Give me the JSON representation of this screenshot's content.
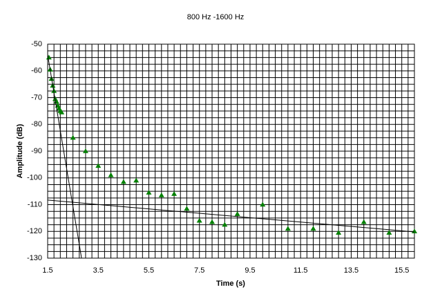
{
  "chart_data": {
    "type": "scatter",
    "title": "800 Hz -1600 Hz",
    "x_label": "Time (s)",
    "y_label": "Amplitude (dB)",
    "xlim": [
      1.5,
      16
    ],
    "ylim": [
      -130,
      -50
    ],
    "xticks": [
      1.5,
      3.5,
      5.5,
      7.5,
      9.5,
      11.5,
      13.5,
      15.5
    ],
    "yticks": [
      -50,
      -60,
      -70,
      -80,
      -90,
      -100,
      -110,
      -120,
      -130
    ],
    "grid": true,
    "series": [
      {
        "color": "#008000",
        "marker": "triangle",
        "x": [
          1.55,
          1.6,
          1.65,
          1.7,
          1.75,
          1.8,
          1.85,
          1.9,
          1.95,
          2.0,
          2.05,
          2.5,
          3.0,
          3.5,
          4.0,
          4.5,
          5.0,
          5.5,
          6.0,
          6.5,
          7.0,
          7.5,
          8.0,
          8.5,
          9.0,
          10.0,
          11.0,
          12.0,
          13.0,
          14.0,
          15.0,
          16.0
        ],
        "values": [
          -55,
          -59.5,
          -63,
          -65.5,
          -67.5,
          -70.5,
          -71.5,
          -73,
          -74,
          -75,
          -75.5,
          -85,
          -90,
          -95.5,
          -99,
          -101.5,
          -101,
          -105.5,
          -106.5,
          -106,
          -111.5,
          -116,
          -116.5,
          -117.5,
          -113.5,
          -110,
          -119,
          -119,
          -120.5,
          -116.5,
          -120.5,
          -120
        ]
      },
      {
        "color": "#000000",
        "marker": "line",
        "x": [
          1.5,
          2.84
        ],
        "values": [
          -54,
          -130
        ]
      },
      {
        "color": "#000000",
        "marker": "line",
        "x": [
          1.5,
          16
        ],
        "values": [
          -108.3,
          -120.2
        ]
      }
    ]
  }
}
